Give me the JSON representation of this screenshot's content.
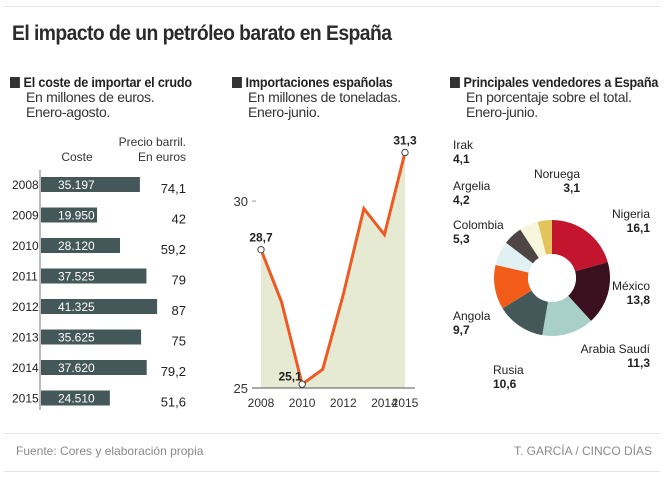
{
  "title": "El impacto de un petróleo barato en España",
  "sections": [
    {
      "heading": "El coste de importar el crudo",
      "sub1": "En millones de euros.",
      "sub2": "Enero-agosto."
    },
    {
      "heading": "Importaciones españolas",
      "sub1": "En millones de toneladas.",
      "sub2": "Enero-junio."
    },
    {
      "heading": "Principales vendedores a España",
      "sub1": "En porcentaje sobre el total.",
      "sub2": "Enero-junio."
    }
  ],
  "footer": {
    "source": "Fuente: Cores y elaboración propia",
    "credit": "T. GARCÍA / CINCO DÍAS"
  },
  "chart_data": [
    {
      "type": "bar",
      "title": "El coste de importar el crudo",
      "col_cost_label": "Coste",
      "col_price_label_1": "Precio barril.",
      "col_price_label_2": "En euros",
      "categories": [
        "2008",
        "2009",
        "2010",
        "2011",
        "2012",
        "2013",
        "2014",
        "2015"
      ],
      "values": [
        35197,
        19950,
        28120,
        37525,
        41325,
        35625,
        37620,
        24510
      ],
      "value_labels": [
        "35.197",
        "19.950",
        "28.120",
        "37.525",
        "41.325",
        "35.625",
        "37.620",
        "24.510"
      ],
      "price_labels": [
        "74,1",
        "42",
        "59,2",
        "79",
        "87",
        "75",
        "79,2",
        "51,6"
      ],
      "prices": [
        74.1,
        42,
        59.2,
        79,
        87,
        75,
        79.2,
        51.6
      ],
      "bar_color": "#44585a"
    },
    {
      "type": "area",
      "title": "Importaciones españolas",
      "x": [
        2008,
        2009,
        2010,
        2011,
        2012,
        2013,
        2014,
        2015
      ],
      "values": [
        28.7,
        27.3,
        25.1,
        25.5,
        27.5,
        29.8,
        29.1,
        31.3
      ],
      "ylim": [
        25,
        31.5
      ],
      "yticks": [
        {
          "v": 25,
          "label": "25"
        },
        {
          "v": 30,
          "label": "30"
        }
      ],
      "xticks": [
        {
          "v": 2008,
          "label": "2008"
        },
        {
          "v": 2010,
          "label": "2010"
        },
        {
          "v": 2012,
          "label": "2012"
        },
        {
          "v": 2014,
          "label": "2014"
        },
        {
          "v": 2015,
          "label": "2015"
        }
      ],
      "annotations": [
        {
          "x": 2008,
          "v": 28.7,
          "label": "28,7"
        },
        {
          "x": 2010,
          "v": 25.1,
          "label": "25,1"
        },
        {
          "x": 2015,
          "v": 31.3,
          "label": "31,3"
        }
      ],
      "line_color": "#ee5a24",
      "fill_color": "#e6ead2"
    },
    {
      "type": "pie",
      "title": "Principales vendedores a España",
      "slices": [
        {
          "name": "Nigeria",
          "value": 16.1,
          "label": "16,1",
          "color": "#c3162e"
        },
        {
          "name": "México",
          "value": 13.8,
          "label": "13,8",
          "color": "#3a0f1e"
        },
        {
          "name": "Arabia Saudí",
          "value": 11.3,
          "label": "11,3",
          "color": "#a8d0c8"
        },
        {
          "name": "Rusia",
          "value": 10.6,
          "label": "10,6",
          "color": "#44585a"
        },
        {
          "name": "Angola",
          "value": 9.7,
          "label": "9,7",
          "color": "#f25c19"
        },
        {
          "name": "Colombia",
          "value": 5.3,
          "label": "5,3",
          "color": "#e1f1f3"
        },
        {
          "name": "Argelia",
          "value": 4.2,
          "label": "4,2",
          "color": "#4e4644"
        },
        {
          "name": "Irak",
          "value": 4.1,
          "label": "4,1",
          "color": "#f7f7de"
        },
        {
          "name": "Noruega",
          "value": 3.1,
          "label": "3,1",
          "color": "#e3c35c"
        }
      ]
    }
  ]
}
